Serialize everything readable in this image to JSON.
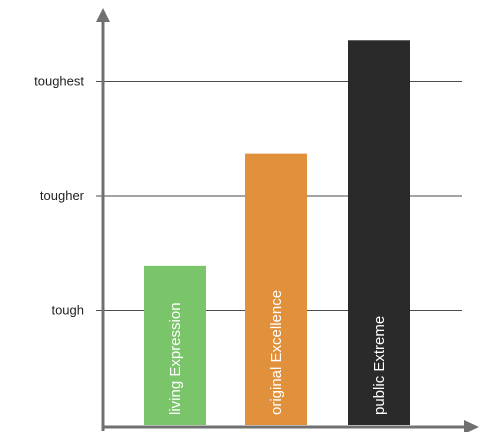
{
  "chart_data": {
    "type": "bar",
    "categories": [
      "living Expression",
      "original Excellence",
      "public Extreme"
    ],
    "values": [
      1.39,
      2.37,
      3.36
    ],
    "colors": [
      "#7ac46a",
      "#e1913b",
      "#2b2a2a"
    ],
    "y_tick_values": [
      1,
      2,
      3
    ],
    "y_tick_labels": [
      "tough",
      "tougher",
      "toughest"
    ],
    "ylim": [
      0,
      3.7
    ],
    "grid": true,
    "title": "",
    "xlabel": "",
    "ylabel": ""
  }
}
